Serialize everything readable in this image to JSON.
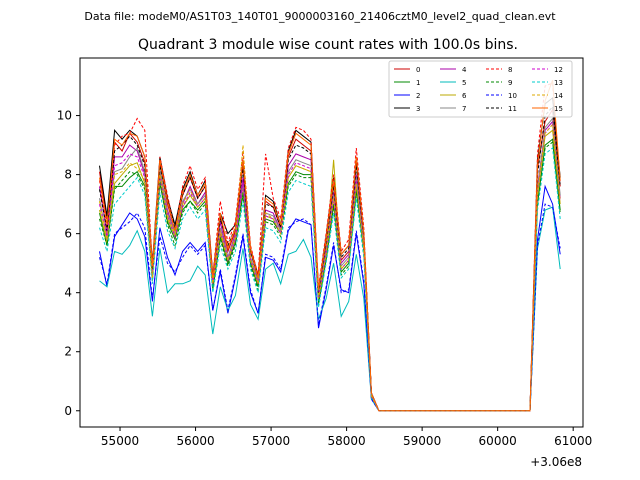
{
  "header": {
    "data_file": "Data file: modeM0/AS1T03_140T01_9000003160_21406cztM0_level2_quad_clean.evt"
  },
  "chart_data": {
    "type": "line",
    "title": "Quadrant 3 module wise count rates with 100.0s bins.",
    "xlabel": "",
    "ylabel": "",
    "x_offset_label": "+3.06e8",
    "xlim": [
      54470,
      61130
    ],
    "ylim": [
      -0.55,
      11.95
    ],
    "x_ticks": [
      55000,
      56000,
      57000,
      58000,
      59000,
      60000,
      61000
    ],
    "x_tick_labels": [
      "55000",
      "56000",
      "57000",
      "58000",
      "59000",
      "60000",
      "61000"
    ],
    "y_ticks": [
      0,
      2,
      4,
      6,
      8,
      10
    ],
    "y_tick_labels": [
      "0",
      "2",
      "4",
      "6",
      "8",
      "10"
    ],
    "legend_position": "top-right",
    "legend_columns": 4,
    "grid": false,
    "x": [
      54728,
      54828,
      54928,
      55028,
      55128,
      55228,
      55328,
      55428,
      55528,
      55628,
      55728,
      55828,
      55928,
      56028,
      56128,
      56228,
      56328,
      56428,
      56528,
      56628,
      56728,
      56828,
      56928,
      57028,
      57128,
      57228,
      57328,
      57428,
      57528,
      57628,
      57728,
      57828,
      57928,
      58028,
      58128,
      58228,
      58328,
      58428,
      58528,
      58628,
      58728,
      58828,
      58928,
      59028,
      59128,
      59228,
      59328,
      59428,
      59528,
      59628,
      59728,
      59828,
      59928,
      60028,
      60128,
      60228,
      60328,
      60428,
      60528,
      60628,
      60728,
      60828
    ],
    "series": [
      {
        "name": "0",
        "color": "#cc0000",
        "dash": "solid",
        "values": [
          8.1,
          6.5,
          9.1,
          8.8,
          9.4,
          9.1,
          8.4,
          4.8,
          8.4,
          7.0,
          6.1,
          7.3,
          7.9,
          7.2,
          7.6,
          4.5,
          6.6,
          5.4,
          6.1,
          8.3,
          5.4,
          4.5,
          7.1,
          6.9,
          6.2,
          8.6,
          9.2,
          9.0,
          8.8,
          4.0,
          5.7,
          7.7,
          5.1,
          5.4,
          8.4,
          5.9,
          0.6,
          0.0,
          0.0,
          0.0,
          0.0,
          0.0,
          0.0,
          0.0,
          0.0,
          0.0,
          0.0,
          0.0,
          0.0,
          0.0,
          0.0,
          0.0,
          0.0,
          0.0,
          0.0,
          0.0,
          0.0,
          0.0,
          8.2,
          9.8,
          10.2,
          7.6
        ]
      },
      {
        "name": "1",
        "color": "#008800",
        "dash": "solid",
        "values": [
          6.7,
          5.6,
          7.6,
          7.6,
          7.9,
          8.1,
          7.6,
          4.5,
          7.7,
          6.4,
          5.8,
          6.8,
          7.1,
          6.8,
          7.1,
          4.2,
          5.9,
          5.0,
          5.7,
          7.4,
          5.0,
          4.2,
          6.5,
          6.4,
          6.0,
          7.7,
          8.1,
          8.0,
          8.0,
          3.7,
          5.2,
          7.0,
          4.7,
          5.0,
          7.5,
          5.4,
          0.5,
          0.0,
          0.0,
          0.0,
          0.0,
          0.0,
          0.0,
          0.0,
          0.0,
          0.0,
          0.0,
          0.0,
          0.0,
          0.0,
          0.0,
          0.0,
          0.0,
          0.0,
          0.0,
          0.0,
          0.0,
          0.0,
          7.0,
          9.0,
          9.2,
          6.8
        ]
      },
      {
        "name": "2",
        "color": "#0000ff",
        "dash": "solid",
        "values": [
          5.4,
          4.2,
          5.9,
          6.3,
          6.7,
          6.5,
          5.9,
          3.7,
          6.2,
          5.2,
          4.6,
          5.4,
          5.7,
          5.4,
          5.7,
          3.4,
          4.7,
          3.3,
          4.5,
          5.9,
          4.0,
          3.3,
          5.2,
          5.1,
          4.7,
          6.1,
          6.5,
          6.4,
          6.3,
          2.8,
          4.1,
          5.6,
          4.1,
          4.0,
          6.0,
          4.3,
          0.4,
          0.0,
          0.0,
          0.0,
          0.0,
          0.0,
          0.0,
          0.0,
          0.0,
          0.0,
          0.0,
          0.0,
          0.0,
          0.0,
          0.0,
          0.0,
          0.0,
          0.0,
          0.0,
          0.0,
          0.0,
          0.0,
          5.8,
          7.6,
          7.0,
          5.3
        ]
      },
      {
        "name": "3",
        "color": "#000000",
        "dash": "solid",
        "values": [
          8.3,
          6.6,
          9.5,
          9.2,
          9.5,
          9.3,
          8.6,
          5.0,
          8.6,
          7.2,
          6.3,
          7.5,
          8.1,
          7.3,
          7.8,
          4.6,
          6.7,
          6.0,
          6.3,
          8.5,
          5.5,
          4.6,
          7.3,
          7.1,
          6.3,
          8.8,
          9.5,
          9.3,
          9.1,
          4.1,
          5.9,
          7.9,
          5.3,
          5.6,
          8.6,
          6.0,
          0.6,
          0.0,
          0.0,
          0.0,
          0.0,
          0.0,
          0.0,
          0.0,
          0.0,
          0.0,
          0.0,
          0.0,
          0.0,
          0.0,
          0.0,
          0.0,
          0.0,
          0.0,
          0.0,
          0.0,
          0.0,
          0.0,
          8.5,
          10.4,
          10.6,
          7.9
        ]
      },
      {
        "name": "4",
        "color": "#aa00aa",
        "dash": "solid",
        "values": [
          7.6,
          6.0,
          8.6,
          8.6,
          9.0,
          8.8,
          8.0,
          4.6,
          8.1,
          6.8,
          6.0,
          7.0,
          7.6,
          7.0,
          7.4,
          4.4,
          6.4,
          5.2,
          6.0,
          7.9,
          5.2,
          4.4,
          6.8,
          6.7,
          6.1,
          8.3,
          8.7,
          8.6,
          8.5,
          3.9,
          5.5,
          7.4,
          5.0,
          5.3,
          8.0,
          5.7,
          0.6,
          0.0,
          0.0,
          0.0,
          0.0,
          0.0,
          0.0,
          0.0,
          0.0,
          0.0,
          0.0,
          0.0,
          0.0,
          0.0,
          0.0,
          0.0,
          0.0,
          0.0,
          0.0,
          0.0,
          0.0,
          0.0,
          7.6,
          9.5,
          9.8,
          7.2
        ]
      },
      {
        "name": "5",
        "color": "#00bbbb",
        "dash": "solid",
        "values": [
          4.4,
          4.2,
          5.4,
          5.3,
          5.6,
          6.1,
          5.4,
          3.2,
          5.5,
          4.0,
          4.3,
          4.3,
          4.4,
          4.9,
          4.6,
          2.6,
          4.2,
          3.4,
          3.9,
          5.5,
          3.6,
          3.1,
          4.8,
          5.0,
          4.3,
          5.3,
          5.4,
          5.8,
          5.2,
          3.1,
          3.8,
          5.0,
          3.2,
          3.7,
          5.3,
          3.8,
          0.4,
          0.0,
          0.0,
          0.0,
          0.0,
          0.0,
          0.0,
          0.0,
          0.0,
          0.0,
          0.0,
          0.0,
          0.0,
          0.0,
          0.0,
          0.0,
          0.0,
          0.0,
          0.0,
          0.0,
          0.0,
          0.0,
          5.5,
          6.8,
          6.9,
          4.8
        ]
      },
      {
        "name": "6",
        "color": "#bbaa00",
        "dash": "solid",
        "values": [
          6.8,
          5.7,
          7.7,
          8.0,
          8.3,
          8.4,
          7.7,
          4.4,
          8.0,
          6.5,
          5.9,
          6.9,
          7.3,
          6.9,
          7.2,
          4.3,
          6.0,
          5.1,
          5.8,
          7.6,
          5.1,
          4.3,
          6.6,
          6.5,
          6.0,
          7.9,
          8.3,
          8.2,
          8.1,
          3.8,
          5.3,
          8.5,
          4.8,
          5.1,
          7.7,
          5.5,
          0.5,
          0.0,
          0.0,
          0.0,
          0.0,
          0.0,
          0.0,
          0.0,
          0.0,
          0.0,
          0.0,
          0.0,
          0.0,
          0.0,
          0.0,
          0.0,
          0.0,
          0.0,
          0.0,
          0.0,
          0.0,
          0.0,
          7.3,
          9.3,
          9.5,
          7.0
        ]
      },
      {
        "name": "7",
        "color": "#888888",
        "dash": "solid",
        "values": [
          7.2,
          5.8,
          8.1,
          8.2,
          8.6,
          8.9,
          8.1,
          4.6,
          8.2,
          6.7,
          6.0,
          7.1,
          7.5,
          7.0,
          7.3,
          4.4,
          6.2,
          5.2,
          5.9,
          7.7,
          5.2,
          4.4,
          6.7,
          6.6,
          6.1,
          8.1,
          8.5,
          8.4,
          8.3,
          3.9,
          5.4,
          7.3,
          4.9,
          5.2,
          7.9,
          5.6,
          0.5,
          0.0,
          0.0,
          0.0,
          0.0,
          0.0,
          0.0,
          0.0,
          0.0,
          0.0,
          0.0,
          0.0,
          0.0,
          0.0,
          0.0,
          0.0,
          0.0,
          0.0,
          0.0,
          0.0,
          0.0,
          0.0,
          7.5,
          9.6,
          9.9,
          7.3
        ]
      },
      {
        "name": "8",
        "color": "#ff0000",
        "dash": "dashed",
        "values": [
          7.8,
          6.2,
          9.0,
          9.3,
          9.4,
          9.9,
          9.5,
          4.9,
          8.6,
          7.3,
          6.1,
          7.6,
          8.3,
          7.5,
          7.9,
          4.6,
          7.1,
          5.7,
          6.4,
          8.8,
          5.6,
          4.6,
          8.7,
          7.2,
          6.5,
          8.9,
          9.6,
          9.5,
          9.2,
          4.2,
          6.0,
          8.0,
          5.4,
          5.8,
          8.9,
          6.2,
          0.6,
          0.0,
          0.0,
          0.0,
          0.0,
          0.0,
          0.0,
          0.0,
          0.0,
          0.0,
          0.0,
          0.0,
          0.0,
          0.0,
          0.0,
          0.0,
          0.0,
          0.0,
          0.0,
          0.0,
          0.0,
          0.0,
          8.7,
          11.0,
          11.1,
          7.7
        ]
      },
      {
        "name": "9",
        "color": "#008800",
        "dash": "dashed",
        "values": [
          6.5,
          5.6,
          7.5,
          7.8,
          8.1,
          8.0,
          7.5,
          4.5,
          7.8,
          6.3,
          5.6,
          6.7,
          7.1,
          6.7,
          7.0,
          4.1,
          5.8,
          4.9,
          5.6,
          7.3,
          4.9,
          4.1,
          6.4,
          6.3,
          5.9,
          7.6,
          8.0,
          7.9,
          7.9,
          3.6,
          5.1,
          6.9,
          4.6,
          4.9,
          7.4,
          5.3,
          0.5,
          0.0,
          0.0,
          0.0,
          0.0,
          0.0,
          0.0,
          0.0,
          0.0,
          0.0,
          0.0,
          0.0,
          0.0,
          0.0,
          0.0,
          0.0,
          0.0,
          0.0,
          0.0,
          0.0,
          0.0,
          0.0,
          7.0,
          8.9,
          9.1,
          6.7
        ]
      },
      {
        "name": "10",
        "color": "#0000ff",
        "dash": "dashed",
        "values": [
          5.2,
          4.3,
          6.0,
          6.2,
          6.4,
          6.7,
          6.2,
          3.8,
          5.9,
          5.0,
          4.7,
          5.2,
          5.6,
          5.3,
          5.6,
          3.4,
          4.8,
          3.4,
          4.6,
          6.0,
          4.1,
          3.3,
          5.3,
          5.2,
          4.8,
          6.2,
          6.4,
          6.5,
          6.3,
          2.9,
          4.2,
          5.7,
          4.0,
          4.1,
          6.1,
          4.4,
          0.4,
          0.0,
          0.0,
          0.0,
          0.0,
          0.0,
          0.0,
          0.0,
          0.0,
          0.0,
          0.0,
          0.0,
          0.0,
          0.0,
          0.0,
          0.0,
          0.0,
          0.0,
          0.0,
          0.0,
          0.0,
          0.0,
          5.6,
          7.0,
          6.9,
          5.5
        ]
      },
      {
        "name": "11",
        "color": "#000000",
        "dash": "dashed",
        "values": [
          7.5,
          6.1,
          8.8,
          9.0,
          9.3,
          9.0,
          8.3,
          4.8,
          8.3,
          7.1,
          6.2,
          7.3,
          7.9,
          7.2,
          7.6,
          4.5,
          6.5,
          5.6,
          6.2,
          8.2,
          5.4,
          4.5,
          7.0,
          6.9,
          6.2,
          8.5,
          9.0,
          8.9,
          8.7,
          4.0,
          5.7,
          7.6,
          5.2,
          5.5,
          8.3,
          5.9,
          0.6,
          0.0,
          0.0,
          0.0,
          0.0,
          0.0,
          0.0,
          0.0,
          0.0,
          0.0,
          0.0,
          0.0,
          0.0,
          0.0,
          0.0,
          0.0,
          0.0,
          0.0,
          0.0,
          0.0,
          0.0,
          0.0,
          8.0,
          10.0,
          10.3,
          7.6
        ]
      },
      {
        "name": "12",
        "color": "#cc00cc",
        "dash": "dashed",
        "values": [
          7.0,
          5.9,
          8.3,
          8.4,
          8.7,
          8.6,
          7.9,
          4.6,
          7.9,
          6.6,
          5.9,
          6.9,
          7.4,
          6.9,
          7.2,
          4.3,
          6.1,
          5.1,
          5.8,
          7.7,
          5.1,
          4.3,
          6.6,
          6.5,
          6.0,
          8.0,
          8.4,
          8.3,
          8.2,
          3.8,
          5.3,
          7.2,
          4.8,
          5.1,
          7.8,
          5.5,
          0.5,
          0.0,
          0.0,
          0.0,
          0.0,
          0.0,
          0.0,
          0.0,
          0.0,
          0.0,
          0.0,
          0.0,
          0.0,
          0.0,
          0.0,
          0.0,
          0.0,
          0.0,
          0.0,
          0.0,
          0.0,
          0.0,
          7.4,
          9.4,
          9.7,
          7.1
        ]
      },
      {
        "name": "13",
        "color": "#00cccc",
        "dash": "dashed",
        "values": [
          6.2,
          5.4,
          7.0,
          7.3,
          7.6,
          7.9,
          7.3,
          4.3,
          7.4,
          6.1,
          5.5,
          6.5,
          6.9,
          6.5,
          6.8,
          4.0,
          5.6,
          4.8,
          5.4,
          7.1,
          4.8,
          4.0,
          6.2,
          6.1,
          5.7,
          7.4,
          7.8,
          7.7,
          7.6,
          3.5,
          5.0,
          6.7,
          4.5,
          4.8,
          7.2,
          5.2,
          0.5,
          0.0,
          0.0,
          0.0,
          0.0,
          0.0,
          0.0,
          0.0,
          0.0,
          0.0,
          0.0,
          0.0,
          0.0,
          0.0,
          0.0,
          0.0,
          0.0,
          0.0,
          0.0,
          0.0,
          0.0,
          0.0,
          6.8,
          8.7,
          8.9,
          6.5
        ]
      },
      {
        "name": "14",
        "color": "#ddaa00",
        "dash": "dashed",
        "values": [
          7.1,
          5.8,
          8.0,
          8.1,
          8.4,
          8.2,
          7.8,
          4.5,
          8.0,
          6.6,
          6.0,
          7.0,
          7.5,
          6.9,
          7.2,
          4.3,
          6.1,
          5.1,
          5.9,
          9.0,
          5.1,
          4.3,
          6.7,
          6.5,
          6.0,
          7.9,
          8.3,
          8.2,
          8.1,
          3.8,
          5.3,
          7.2,
          4.8,
          5.1,
          7.7,
          5.5,
          0.5,
          0.0,
          0.0,
          0.0,
          0.0,
          0.0,
          0.0,
          0.0,
          0.0,
          0.0,
          0.0,
          0.0,
          0.0,
          0.0,
          0.0,
          0.0,
          0.0,
          0.0,
          0.0,
          0.0,
          0.0,
          0.0,
          7.4,
          9.4,
          9.7,
          7.1
        ]
      },
      {
        "name": "15",
        "color": "#ff6600",
        "dash": "solid",
        "values": [
          7.9,
          6.3,
          9.2,
          9.0,
          9.4,
          9.3,
          8.6,
          4.9,
          8.5,
          7.1,
          6.1,
          7.4,
          8.0,
          7.3,
          7.7,
          4.5,
          6.7,
          5.5,
          6.2,
          8.5,
          5.5,
          4.5,
          7.2,
          7.0,
          6.3,
          8.7,
          9.4,
          9.2,
          9.0,
          4.1,
          5.8,
          7.8,
          5.3,
          5.6,
          8.6,
          6.0,
          0.6,
          0.0,
          0.0,
          0.0,
          0.0,
          0.0,
          0.0,
          0.0,
          0.0,
          0.0,
          0.0,
          0.0,
          0.0,
          0.0,
          0.0,
          0.0,
          0.0,
          0.0,
          0.0,
          0.0,
          0.0,
          0.0,
          8.3,
          10.5,
          11.2,
          7.8
        ]
      }
    ]
  }
}
